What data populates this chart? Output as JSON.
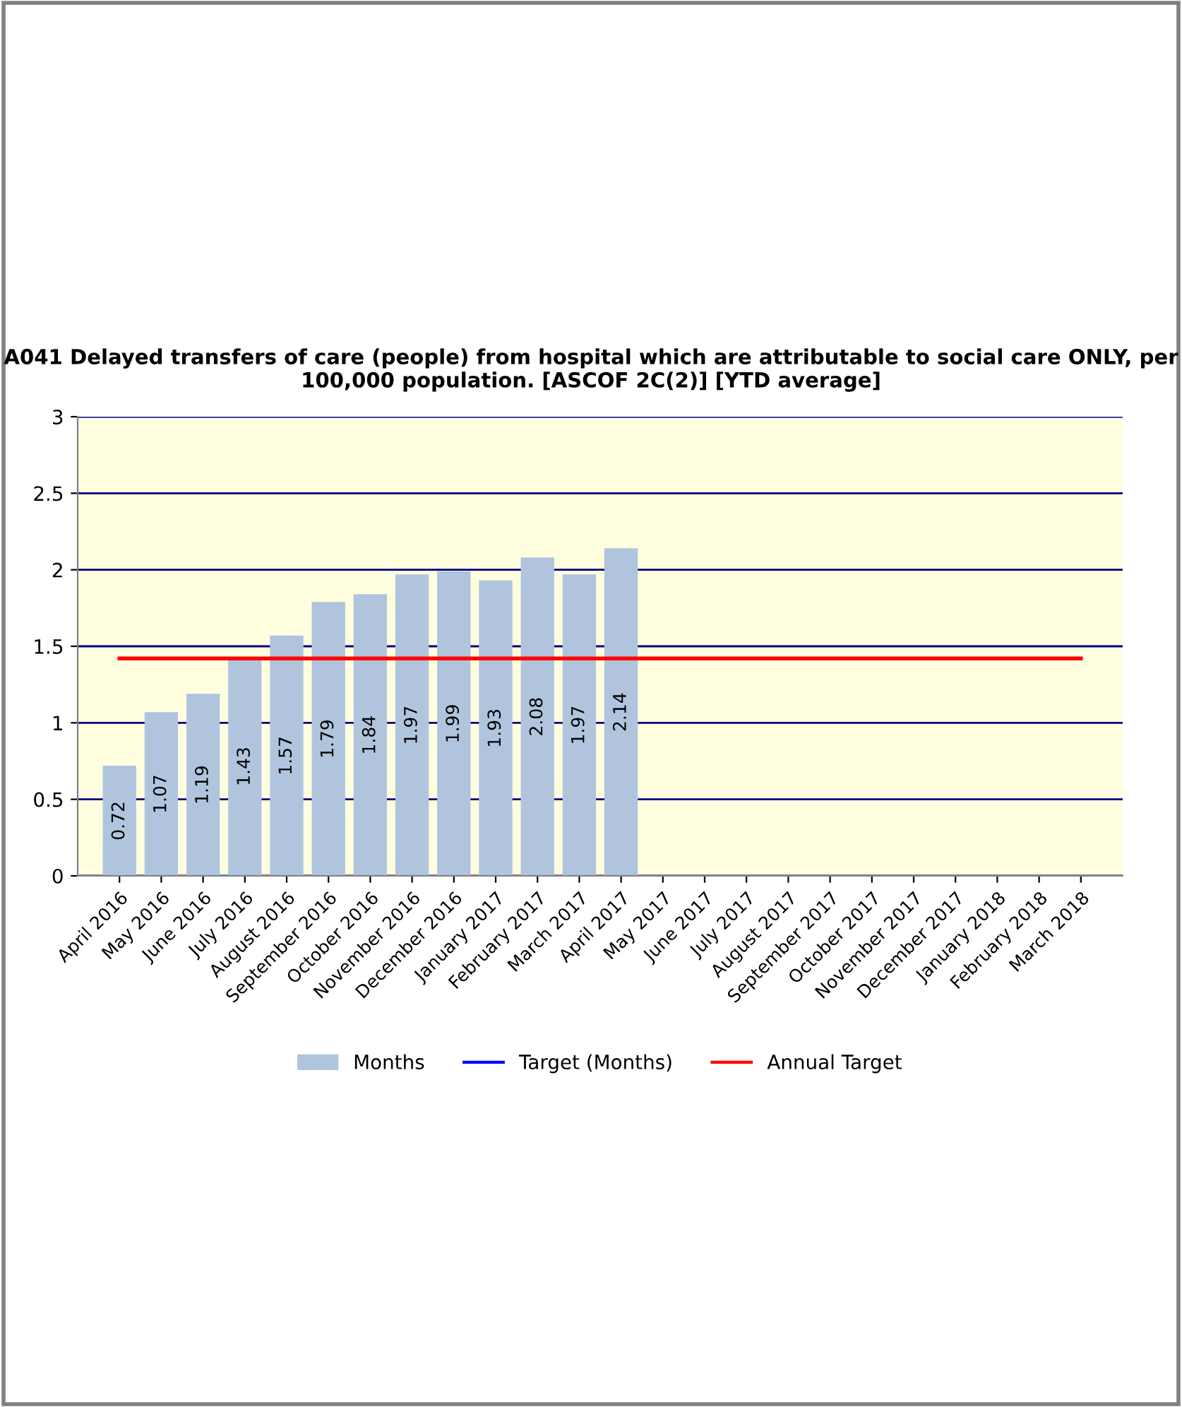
{
  "chart_data": {
    "type": "bar",
    "title": "A041 Delayed transfers of care (people) from hospital which are attributable to social care ONLY, per 100,000 population. [ASCOF 2C(2)] [YTD average]",
    "categories": [
      "April 2016",
      "May 2016",
      "June 2016",
      "July 2016",
      "August 2016",
      "September 2016",
      "October 2016",
      "November 2016",
      "December 2016",
      "January 2017",
      "February 2017",
      "March 2017",
      "April 2017",
      "May 2017",
      "June 2017",
      "July 2017",
      "August 2017",
      "September 2017",
      "October 2017",
      "November 2017",
      "December 2017",
      "January 2018",
      "February 2018",
      "March 2018"
    ],
    "series": [
      {
        "name": "Months",
        "color": "#b0c4de",
        "values": [
          0.72,
          1.07,
          1.19,
          1.43,
          1.57,
          1.79,
          1.84,
          1.97,
          1.99,
          1.93,
          2.08,
          1.97,
          2.14,
          null,
          null,
          null,
          null,
          null,
          null,
          null,
          null,
          null,
          null,
          null
        ],
        "value_labels": [
          "0.72",
          "1.07",
          "1.19",
          "1.43",
          "1.57",
          "1.79",
          "1.84",
          "1.97",
          "1.99",
          "1.93",
          "2.08",
          "1.97",
          "2.14",
          null,
          null,
          null,
          null,
          null,
          null,
          null,
          null,
          null,
          null,
          null
        ]
      },
      {
        "name": "Target (Months)",
        "type": "line",
        "color": "#0000ff",
        "values": [
          null,
          null,
          null,
          null,
          null,
          null,
          null,
          null,
          null,
          null,
          null,
          null,
          null,
          null,
          null,
          null,
          null,
          null,
          null,
          null,
          null,
          null,
          null,
          null
        ]
      },
      {
        "name": "Annual Target",
        "type": "line",
        "color": "#ff0000",
        "values": [
          1.42,
          1.42,
          1.42,
          1.42,
          1.42,
          1.42,
          1.42,
          1.42,
          1.42,
          1.42,
          1.42,
          1.42,
          1.42,
          1.42,
          1.42,
          1.42,
          1.42,
          1.42,
          1.42,
          1.42,
          1.42,
          1.42,
          1.42,
          1.42
        ]
      }
    ],
    "ylim": [
      0,
      3
    ],
    "yticks": [
      0,
      0.5,
      1,
      1.5,
      2,
      2.5,
      3
    ],
    "grid": "y",
    "legend": "bottom"
  }
}
